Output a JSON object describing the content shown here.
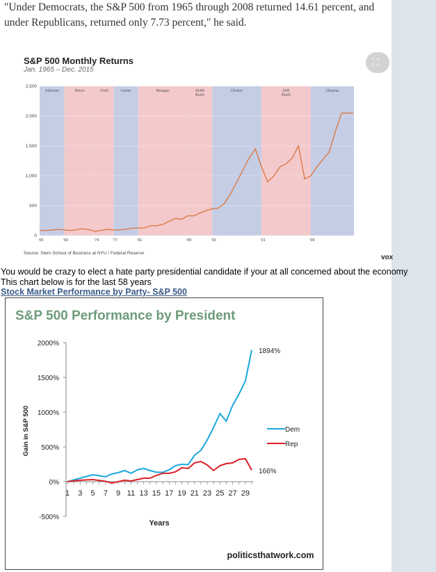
{
  "quote": "\"Under Democrats, the S&P 500 from 1965 through 2008 returned 14.61 percent, and under Republicans, returned only 7.73 percent,\" he said.",
  "chart1": {
    "title": "S&P 500 Monthly Returns",
    "subtitle": "Jan. 1965 – Dec. 2015",
    "source": "Source: Stern School of Business at NYU / Federal Reserve",
    "credit": "vox",
    "expand_icon": "expand-icon"
  },
  "body_text": {
    "line1": "You would be crazy to elect a hate party presidential candidate if your at all concerned about the economy",
    "line2": "This chart below is for the last 58 years",
    "link": "Stock Market Performance by Party- S&P 500"
  },
  "chart_data": [
    {
      "type": "line",
      "title": "S&P 500 Monthly Returns",
      "subtitle": "Jan. 1965 – Dec. 2015",
      "xlim": [
        1965,
        2016
      ],
      "ylim": [
        0,
        2500
      ],
      "yticks": [
        0,
        500,
        1000,
        1500,
        2000,
        2500
      ],
      "ytick_labels": [
        "0",
        "500",
        "1,000",
        "1,500",
        "2,000",
        "2,500"
      ],
      "xticks": [
        1965,
        1969,
        1974,
        1977,
        1981,
        1989,
        1993,
        2001,
        2009
      ],
      "xtick_labels": [
        "'65",
        "'69",
        "'74",
        "'77",
        "'81",
        "'89",
        "'93",
        "'01",
        "'09"
      ],
      "colors": {
        "dem": "#c5cde5",
        "rep": "#f3c9cb",
        "line": "#d97a45"
      },
      "presidents": [
        {
          "name": "Johnson",
          "start": 1965,
          "end": 1969,
          "party": "dem"
        },
        {
          "name": "Nixon",
          "start": 1969,
          "end": 1974,
          "party": "rep"
        },
        {
          "name": "Ford",
          "start": 1974,
          "end": 1977,
          "party": "rep"
        },
        {
          "name": "Carter",
          "start": 1977,
          "end": 1981,
          "party": "dem"
        },
        {
          "name": "Reagan",
          "start": 1981,
          "end": 1989,
          "party": "rep"
        },
        {
          "name": "GHW Bush",
          "start": 1989,
          "end": 1993,
          "party": "rep"
        },
        {
          "name": "Clinton",
          "start": 1993,
          "end": 2001,
          "party": "dem"
        },
        {
          "name": "GW Bush",
          "start": 2001,
          "end": 2009,
          "party": "rep"
        },
        {
          "name": "Obama",
          "start": 2009,
          "end": 2016,
          "party": "dem"
        }
      ],
      "series": [
        {
          "name": "S&P 500",
          "x": [
            1965,
            1966,
            1967,
            1968,
            1969,
            1970,
            1971,
            1972,
            1973,
            1974,
            1975,
            1976,
            1977,
            1978,
            1979,
            1980,
            1981,
            1982,
            1983,
            1984,
            1985,
            1986,
            1987,
            1988,
            1989,
            1990,
            1991,
            1992,
            1993,
            1994,
            1995,
            1996,
            1997,
            1998,
            1999,
            2000,
            2001,
            2002,
            2003,
            2004,
            2005,
            2006,
            2007,
            2008,
            2009,
            2010,
            2011,
            2012,
            2013,
            2014,
            2015,
            2015.9
          ],
          "values": [
            88,
            85,
            93,
            103,
            95,
            85,
            100,
            115,
            100,
            70,
            90,
            105,
            95,
            96,
            105,
            125,
            125,
            130,
            165,
            165,
            190,
            240,
            290,
            270,
            330,
            330,
            380,
            415,
            450,
            460,
            540,
            700,
            900,
            1100,
            1300,
            1450,
            1150,
            900,
            1000,
            1150,
            1200,
            1300,
            1500,
            950,
            1000,
            1150,
            1280,
            1400,
            1750,
            2050,
            2050,
            2050
          ]
        }
      ]
    },
    {
      "type": "line",
      "title": "S&P 500 Performance by President",
      "xlabel": "Years",
      "ylabel": "Gain in S&P 500",
      "ylim": [
        -500,
        2000
      ],
      "yticks": [
        -500,
        0,
        500,
        1000,
        1500,
        2000
      ],
      "ytick_labels": [
        "-500%",
        "0%",
        "500%",
        "1000%",
        "1500%",
        "2000%"
      ],
      "xticks": [
        1,
        3,
        5,
        7,
        9,
        11,
        13,
        15,
        17,
        19,
        21,
        23,
        25,
        27,
        29
      ],
      "x": [
        1,
        3,
        5,
        7,
        8,
        9,
        10,
        11,
        12,
        13,
        14,
        15,
        16,
        17,
        18,
        19,
        20,
        21,
        22,
        23,
        24,
        25,
        26,
        27,
        28,
        29,
        30
      ],
      "series": [
        {
          "name": "Dem",
          "color": "#1aa6dc",
          "values": [
            0,
            50,
            100,
            70,
            110,
            130,
            160,
            120,
            170,
            190,
            160,
            135,
            135,
            170,
            230,
            250,
            245,
            380,
            450,
            600,
            780,
            980,
            870,
            1100,
            1260,
            1450,
            1894
          ]
        },
        {
          "name": "Rep",
          "color": "#dc1f26",
          "values": [
            0,
            20,
            30,
            5,
            -20,
            0,
            20,
            10,
            30,
            50,
            50,
            90,
            120,
            120,
            140,
            200,
            190,
            270,
            290,
            240,
            160,
            230,
            260,
            270,
            320,
            330,
            166
          ]
        }
      ],
      "annotations": [
        "1894%",
        "166%"
      ],
      "watermark": "politicsthatwork.com"
    }
  ]
}
